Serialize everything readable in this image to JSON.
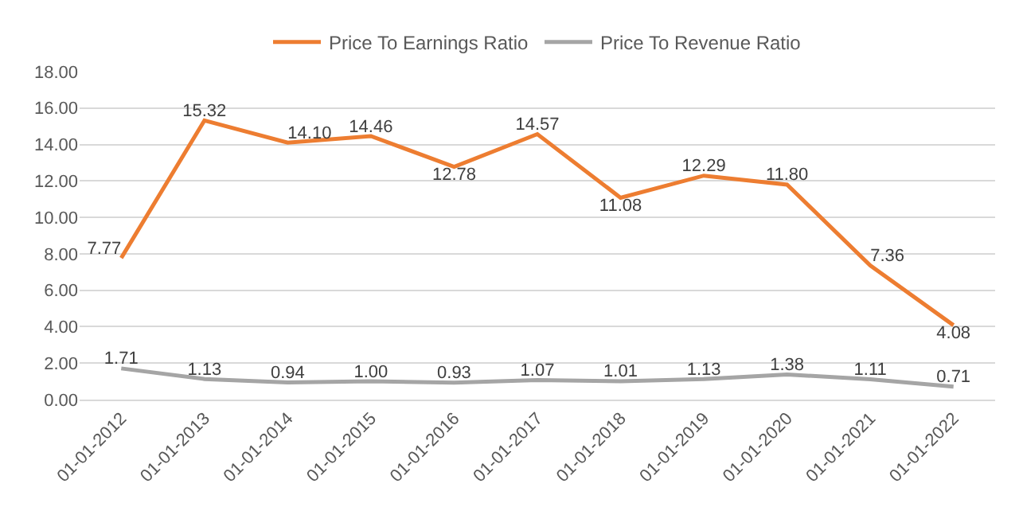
{
  "chart_data": {
    "type": "line",
    "categories": [
      "01-01-2012",
      "01-01-2013",
      "01-01-2014",
      "01-01-2015",
      "01-01-2016",
      "01-01-2017",
      "01-01-2018",
      "01-01-2019",
      "01-01-2020",
      "01-01-2021",
      "01-01-2022"
    ],
    "series": [
      {
        "name": "Price To Earnings Ratio",
        "color": "#ed7d31",
        "values": [
          7.77,
          15.32,
          14.1,
          14.46,
          12.78,
          14.57,
          11.08,
          12.29,
          11.8,
          7.36,
          4.08
        ],
        "value_labels": [
          "7.77",
          "15.32",
          "14.10",
          "14.46",
          "12.78",
          "14.57",
          "11.08",
          "12.29",
          "11.80",
          "7.36",
          "4.08"
        ]
      },
      {
        "name": "Price To Revenue Ratio",
        "color": "#a5a5a5",
        "values": [
          1.71,
          1.13,
          0.94,
          1.0,
          0.93,
          1.07,
          1.01,
          1.13,
          1.38,
          1.11,
          0.71
        ],
        "value_labels": [
          "1.71",
          "1.13",
          "0.94",
          "1.00",
          "0.93",
          "1.07",
          "1.01",
          "1.13",
          "1.38",
          "1.11",
          "0.71"
        ]
      }
    ],
    "ylim": [
      0,
      18
    ],
    "yticks": [
      {
        "value": 0,
        "label": "0.00"
      },
      {
        "value": 2,
        "label": "2.00"
      },
      {
        "value": 4,
        "label": "4.00"
      },
      {
        "value": 6,
        "label": "6.00"
      },
      {
        "value": 8,
        "label": "8.00"
      },
      {
        "value": 10,
        "label": "10.00"
      },
      {
        "value": 12,
        "label": "12.00"
      },
      {
        "value": 14,
        "label": "14.00"
      },
      {
        "value": 16,
        "label": "16.00"
      },
      {
        "value": 18,
        "label": "18.00"
      }
    ],
    "grid": "y",
    "legend": "top",
    "marker": "none",
    "line_style": "solid"
  }
}
